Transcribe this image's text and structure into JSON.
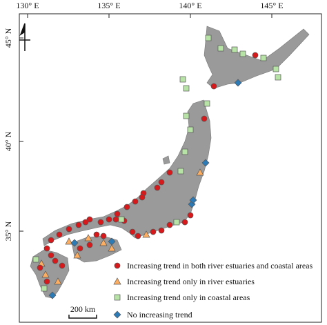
{
  "axes": {
    "top": [
      "130° E",
      "135° E",
      "140° E",
      "145° E"
    ],
    "left": [
      "45° N",
      "40° N",
      "35° N"
    ]
  },
  "legend": [
    "Increasing trend in both river estuaries and coastal areas",
    "Increasing trend only in river estuaries",
    "Increasing trend only in coastal areas",
    "No increasing trend"
  ],
  "scale_bar": "200 km"
}
